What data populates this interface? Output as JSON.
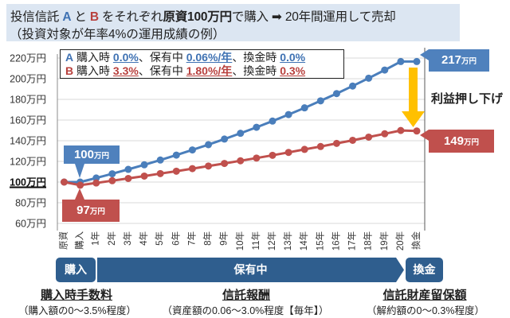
{
  "header": {
    "line1": {
      "p1": "投信信託 ",
      "fund_a": "A",
      "p2": " と ",
      "fund_b": "B",
      "p3": " をそれぞれ",
      "p4": "原資100万円",
      "p5": "で購入 ",
      "arrow": "➡",
      "p6": " 20年間運用して売却"
    },
    "line2": "（投資対象が年率4%の運用成績の例）"
  },
  "legend": {
    "rows": [
      {
        "fund": "A",
        "buy_label": "購入時",
        "buy_fee": "0.0%",
        "hold_label": "、保有中",
        "hold_fee": "0.06%/年",
        "sell_label": "、換金時",
        "sell_fee": "0.0%"
      },
      {
        "fund": "B",
        "buy_label": "購入時",
        "buy_fee": "3.3%",
        "hold_label": "、保有中",
        "hold_fee": "1.80%/年",
        "sell_label": "、換金時",
        "sell_fee": "0.3%"
      }
    ]
  },
  "callouts": {
    "a_start": {
      "value": "100",
      "unit": "万円"
    },
    "b_start": {
      "value": "97",
      "unit": "万円"
    },
    "a_end": {
      "value": "217",
      "unit": "万円"
    },
    "b_end": {
      "value": "149",
      "unit": "万円"
    },
    "profit_drag": "利益押し下げ"
  },
  "colors": {
    "series_a": "#4a7ebb",
    "series_b": "#c0504d",
    "timeline": "#2f5e8e",
    "arrow": "#ffc000",
    "header_bg": "#dce6f2"
  },
  "timeline": {
    "buy": "購入",
    "hold": "保有中",
    "sell": "換金"
  },
  "fees": [
    {
      "title": "購入時手数料",
      "detail": "（購入額の0～3.5%程度）"
    },
    {
      "title": "信託報酬",
      "detail": "（資産額の0.06～3.0%程度【毎年】）"
    },
    {
      "title": "信託財産留保額",
      "detail": "（解約額の0～0.3%程度）"
    }
  ],
  "chart_data": {
    "type": "line",
    "title": "",
    "xlabel": "",
    "ylabel": "",
    "categories": [
      "原資",
      "購入",
      "1年",
      "2年",
      "3年",
      "4年",
      "5年",
      "6年",
      "7年",
      "8年",
      "9年",
      "10年",
      "11年",
      "12年",
      "13年",
      "14年",
      "15年",
      "16年",
      "17年",
      "18年",
      "19年",
      "20年",
      "換金"
    ],
    "series": [
      {
        "name": "A",
        "color": "#4a7ebb",
        "values": [
          100,
          100,
          103.9,
          108.0,
          112.3,
          116.7,
          121.3,
          126.1,
          131.1,
          136.2,
          141.6,
          147.2,
          153.0,
          159.0,
          165.3,
          171.8,
          178.6,
          185.6,
          192.9,
          200.5,
          208.4,
          216.6,
          216.6
        ]
      },
      {
        "name": "B",
        "color": "#c0504d",
        "values": [
          100,
          97,
          99.1,
          101.3,
          103.5,
          105.8,
          108.2,
          110.5,
          113.0,
          115.5,
          118.0,
          120.6,
          123.2,
          125.9,
          128.7,
          131.6,
          134.4,
          137.4,
          140.4,
          143.5,
          146.7,
          149.9,
          149.4
        ]
      }
    ],
    "ylim": [
      60,
      220
    ],
    "yticks": [
      60,
      80,
      100,
      120,
      140,
      160,
      180,
      200,
      220
    ],
    "ytick_labels": [
      "60万円",
      "80万円",
      "100万円",
      "120万円",
      "140万円",
      "160万円",
      "180万円",
      "200万円",
      "220万円"
    ],
    "highlight_ytick": "100万円",
    "grid": true,
    "legend_position": "top-left"
  }
}
